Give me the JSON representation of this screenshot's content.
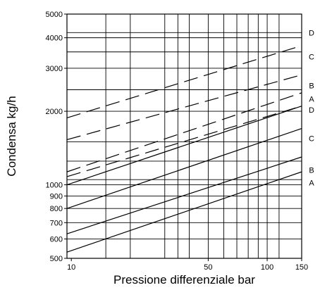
{
  "chart_data": {
    "type": "line",
    "title": "",
    "xlabel": "Pressione differenziale bar",
    "ylabel": "Condensa kg/h",
    "xscale": "log",
    "yscale": "log",
    "xlim": [
      9.5,
      150
    ],
    "ylim": [
      500,
      5000
    ],
    "grid": true,
    "x_ticks": [
      {
        "value": 10,
        "label": "10"
      },
      {
        "value": 50,
        "label": "50"
      },
      {
        "value": 100,
        "label": "100"
      },
      {
        "value": 150,
        "label": "150"
      }
    ],
    "x_gridlines": [
      9.5,
      15,
      20,
      30,
      35,
      40,
      50,
      60,
      70,
      80,
      90,
      100,
      115,
      150
    ],
    "y_ticks": [
      {
        "value": 500,
        "label": "500"
      },
      {
        "value": 600,
        "label": "600"
      },
      {
        "value": 700,
        "label": "700"
      },
      {
        "value": 800,
        "label": "800"
      },
      {
        "value": 900,
        "label": "900"
      },
      {
        "value": 1000,
        "label": "1000"
      },
      {
        "value": 2000,
        "label": "2000"
      },
      {
        "value": 3000,
        "label": "3000"
      },
      {
        "value": 4000,
        "label": "4000"
      },
      {
        "value": 5000,
        "label": "5000"
      }
    ],
    "y_gridlines": [
      500,
      600,
      700,
      800,
      900,
      1000,
      1050,
      1250,
      1500,
      2000,
      2450,
      3000,
      3500,
      4000,
      4200,
      5000
    ],
    "series": [
      {
        "name": "A",
        "style": "solid",
        "x": [
          9.5,
          150
        ],
        "y": [
          530,
          1130
        ]
      },
      {
        "name": "B",
        "style": "solid",
        "x": [
          9.5,
          150
        ],
        "y": [
          630,
          1300
        ]
      },
      {
        "name": "C",
        "style": "solid",
        "x": [
          9.5,
          150
        ],
        "y": [
          800,
          1700
        ]
      },
      {
        "name": "D",
        "style": "solid",
        "x": [
          9.5,
          150
        ],
        "y": [
          1000,
          2100
        ]
      },
      {
        "name": "A",
        "style": "dashed",
        "x": [
          9.5,
          150
        ],
        "y": [
          1080,
          2100
        ]
      },
      {
        "name": "B",
        "style": "dashed",
        "x": [
          9.5,
          150
        ],
        "y": [
          1130,
          2380
        ]
      },
      {
        "name": "C",
        "style": "dashed",
        "x": [
          9.5,
          150
        ],
        "y": [
          1530,
          2820
        ]
      },
      {
        "name": "D",
        "style": "dashed",
        "x": [
          9.5,
          140
        ],
        "y": [
          1880,
          3650
        ]
      }
    ],
    "right_labels": [
      {
        "label": "D",
        "value": 4200
      },
      {
        "label": "C",
        "value": 3350
      },
      {
        "label": "B",
        "value": 2550
      },
      {
        "label": "A",
        "value": 2250
      },
      {
        "label": "D",
        "value": 2030
      },
      {
        "label": "C",
        "value": 1550
      },
      {
        "label": "B",
        "value": 1150
      },
      {
        "label": "A",
        "value": 1020
      }
    ]
  }
}
